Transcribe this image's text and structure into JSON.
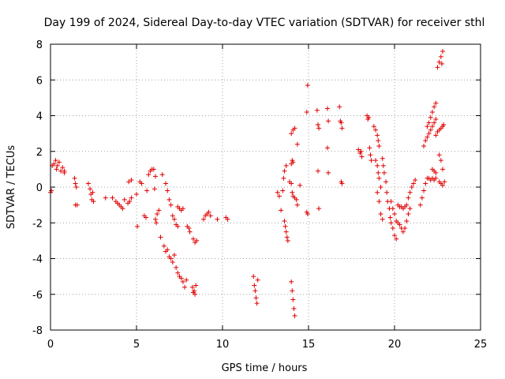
{
  "chart_data": {
    "type": "scatter",
    "title": "Day 199 of 2024, Sidereal Day-to-day VTEC variation (SDTVAR) for receiver sthl",
    "xlabel": "GPS time / hours",
    "ylabel": "SDTVAR / TECUs",
    "xlim": [
      0,
      25
    ],
    "ylim": [
      -8,
      8
    ],
    "xticks": [
      "0",
      "5",
      "10",
      "15",
      "20",
      "25"
    ],
    "yticks": [
      "-8",
      "-6",
      "-4",
      "-2",
      "0",
      "2",
      "4",
      "6",
      "8"
    ],
    "grid": true,
    "marker": "+",
    "color": "#e00000",
    "series": [
      {
        "name": "SDTVAR",
        "points": [
          [
            0.0,
            -0.3
          ],
          [
            0.05,
            -0.2
          ],
          [
            0.1,
            1.2
          ],
          [
            0.2,
            1.3
          ],
          [
            0.3,
            1.5
          ],
          [
            0.35,
            1.0
          ],
          [
            0.4,
            1.2
          ],
          [
            0.5,
            1.4
          ],
          [
            0.6,
            0.9
          ],
          [
            0.7,
            1.1
          ],
          [
            0.8,
            0.9
          ],
          [
            0.8,
            0.8
          ],
          [
            1.4,
            0.5
          ],
          [
            1.45,
            0.2
          ],
          [
            1.5,
            0.0
          ],
          [
            1.45,
            -1.0
          ],
          [
            1.55,
            -1.0
          ],
          [
            2.2,
            0.2
          ],
          [
            2.3,
            -0.1
          ],
          [
            2.35,
            -0.4
          ],
          [
            2.4,
            -0.7
          ],
          [
            2.45,
            -0.3
          ],
          [
            2.5,
            -0.8
          ],
          [
            3.2,
            -0.6
          ],
          [
            3.6,
            -0.6
          ],
          [
            3.8,
            -0.8
          ],
          [
            3.9,
            -0.9
          ],
          [
            4.0,
            -1.0
          ],
          [
            4.1,
            -1.1
          ],
          [
            4.2,
            -1.2
          ],
          [
            4.3,
            -0.7
          ],
          [
            4.5,
            -0.9
          ],
          [
            4.6,
            -0.8
          ],
          [
            4.7,
            -0.6
          ],
          [
            4.55,
            0.3
          ],
          [
            4.7,
            0.4
          ],
          [
            5.0,
            -0.4
          ],
          [
            5.05,
            -2.2
          ],
          [
            5.2,
            0.3
          ],
          [
            5.3,
            0.2
          ],
          [
            5.45,
            -1.6
          ],
          [
            5.55,
            -1.7
          ],
          [
            5.6,
            -0.2
          ],
          [
            5.7,
            0.7
          ],
          [
            5.8,
            0.9
          ],
          [
            5.9,
            1.0
          ],
          [
            6.0,
            1.0
          ],
          [
            6.05,
            -0.1
          ],
          [
            6.1,
            -1.8
          ],
          [
            6.15,
            -2.0
          ],
          [
            6.1,
            0.6
          ],
          [
            6.2,
            -1.5
          ],
          [
            6.3,
            -1.3
          ],
          [
            6.5,
            0.7
          ],
          [
            6.4,
            -2.8
          ],
          [
            6.6,
            -3.3
          ],
          [
            6.7,
            -3.6
          ],
          [
            6.8,
            -3.5
          ],
          [
            6.9,
            -3.9
          ],
          [
            7.0,
            -4.0
          ],
          [
            7.1,
            -4.2
          ],
          [
            7.2,
            -3.8
          ],
          [
            7.3,
            -4.5
          ],
          [
            7.4,
            -4.8
          ],
          [
            7.5,
            -5.0
          ],
          [
            7.6,
            -5.1
          ],
          [
            7.7,
            -5.3
          ],
          [
            7.8,
            -5.6
          ],
          [
            7.9,
            -5.2
          ],
          [
            6.7,
            0.2
          ],
          [
            6.8,
            -0.2
          ],
          [
            6.9,
            -0.7
          ],
          [
            7.0,
            -1.0
          ],
          [
            7.1,
            -1.6
          ],
          [
            7.2,
            -1.8
          ],
          [
            7.3,
            -2.1
          ],
          [
            7.4,
            -2.2
          ],
          [
            7.4,
            -1.1
          ],
          [
            7.5,
            -1.2
          ],
          [
            7.6,
            -1.3
          ],
          [
            7.7,
            -1.2
          ],
          [
            7.95,
            -2.2
          ],
          [
            8.05,
            -2.3
          ],
          [
            8.1,
            -2.5
          ],
          [
            8.25,
            -5.6
          ],
          [
            8.3,
            -5.9
          ],
          [
            8.35,
            -5.8
          ],
          [
            8.4,
            -6.0
          ],
          [
            8.45,
            -5.5
          ],
          [
            8.3,
            -2.9
          ],
          [
            8.4,
            -3.1
          ],
          [
            8.5,
            -3.0
          ],
          [
            8.9,
            -1.8
          ],
          [
            9.0,
            -1.6
          ],
          [
            9.1,
            -1.5
          ],
          [
            9.2,
            -1.4
          ],
          [
            9.3,
            -1.6
          ],
          [
            9.7,
            -1.8
          ],
          [
            10.2,
            -1.7
          ],
          [
            10.3,
            -1.8
          ],
          [
            11.8,
            -5.0
          ],
          [
            11.85,
            -5.5
          ],
          [
            11.9,
            -5.8
          ],
          [
            11.95,
            -6.2
          ],
          [
            12.0,
            -6.5
          ],
          [
            12.05,
            -5.2
          ],
          [
            13.2,
            -0.3
          ],
          [
            13.3,
            -0.5
          ],
          [
            13.4,
            -1.3
          ],
          [
            13.5,
            -0.2
          ],
          [
            13.55,
            0.5
          ],
          [
            13.6,
            -1.9
          ],
          [
            13.65,
            -2.2
          ],
          [
            13.7,
            -2.5
          ],
          [
            13.75,
            -2.8
          ],
          [
            13.8,
            -3.0
          ],
          [
            13.6,
            0.9
          ],
          [
            13.7,
            1.2
          ],
          [
            13.9,
            0.3
          ],
          [
            14.0,
            0.2
          ],
          [
            14.05,
            -0.3
          ],
          [
            14.1,
            -0.5
          ],
          [
            14.2,
            -0.6
          ],
          [
            14.3,
            -0.7
          ],
          [
            14.35,
            -1.0
          ],
          [
            14.0,
            1.3
          ],
          [
            14.05,
            1.5
          ],
          [
            14.1,
            1.4
          ],
          [
            14.0,
            -5.3
          ],
          [
            14.05,
            -5.8
          ],
          [
            14.1,
            -6.3
          ],
          [
            14.15,
            -6.8
          ],
          [
            14.2,
            -7.2
          ],
          [
            14.0,
            3.0
          ],
          [
            14.1,
            3.2
          ],
          [
            14.2,
            3.3
          ],
          [
            14.35,
            2.4
          ],
          [
            14.5,
            0.1
          ],
          [
            14.9,
            4.2
          ],
          [
            14.95,
            5.7
          ],
          [
            14.9,
            -1.4
          ],
          [
            14.95,
            -1.5
          ],
          [
            15.5,
            4.3
          ],
          [
            15.55,
            3.5
          ],
          [
            15.6,
            3.3
          ],
          [
            15.55,
            0.9
          ],
          [
            15.6,
            -1.2
          ],
          [
            16.1,
            4.4
          ],
          [
            16.15,
            3.7
          ],
          [
            16.1,
            2.2
          ],
          [
            16.15,
            0.8
          ],
          [
            16.8,
            4.5
          ],
          [
            16.85,
            3.7
          ],
          [
            16.9,
            3.6
          ],
          [
            16.95,
            3.3
          ],
          [
            16.9,
            0.3
          ],
          [
            16.95,
            0.2
          ],
          [
            17.9,
            2.1
          ],
          [
            18.0,
            1.9
          ],
          [
            18.05,
            2.0
          ],
          [
            18.1,
            1.7
          ],
          [
            18.4,
            4.0
          ],
          [
            18.45,
            3.8
          ],
          [
            18.5,
            3.9
          ],
          [
            18.55,
            2.2
          ],
          [
            18.6,
            1.8
          ],
          [
            18.65,
            1.5
          ],
          [
            18.8,
            3.4
          ],
          [
            18.9,
            3.2
          ],
          [
            19.0,
            2.9
          ],
          [
            19.05,
            2.6
          ],
          [
            19.1,
            2.3
          ],
          [
            18.9,
            1.5
          ],
          [
            19.0,
            1.2
          ],
          [
            19.05,
            0.8
          ],
          [
            19.1,
            0.5
          ],
          [
            19.2,
            0.0
          ],
          [
            19.0,
            -0.3
          ],
          [
            19.1,
            -0.8
          ],
          [
            19.2,
            -1.5
          ],
          [
            19.3,
            -1.8
          ],
          [
            19.3,
            1.6
          ],
          [
            19.35,
            1.2
          ],
          [
            19.4,
            0.8
          ],
          [
            19.5,
            0.3
          ],
          [
            19.55,
            -0.3
          ],
          [
            19.6,
            -0.8
          ],
          [
            19.7,
            -1.2
          ],
          [
            19.75,
            -1.7
          ],
          [
            19.8,
            -2.0
          ],
          [
            19.9,
            -2.3
          ],
          [
            20.0,
            -2.7
          ],
          [
            20.1,
            -2.9
          ],
          [
            19.8,
            -0.8
          ],
          [
            19.9,
            -1.2
          ],
          [
            20.0,
            -1.5
          ],
          [
            20.1,
            -1.9
          ],
          [
            20.2,
            -2.0
          ],
          [
            20.3,
            -2.1
          ],
          [
            20.4,
            -2.3
          ],
          [
            20.5,
            -2.5
          ],
          [
            20.6,
            -2.3
          ],
          [
            20.7,
            -1.9
          ],
          [
            20.8,
            -1.5
          ],
          [
            20.9,
            -1.2
          ],
          [
            20.2,
            -1.0
          ],
          [
            20.3,
            -1.1
          ],
          [
            20.4,
            -1.1
          ],
          [
            20.5,
            -1.2
          ],
          [
            20.6,
            -1.1
          ],
          [
            20.7,
            -1.0
          ],
          [
            20.8,
            -0.6
          ],
          [
            20.9,
            -0.3
          ],
          [
            21.0,
            0.0
          ],
          [
            21.1,
            0.2
          ],
          [
            21.2,
            0.4
          ],
          [
            21.5,
            -1.0
          ],
          [
            21.6,
            -0.6
          ],
          [
            21.7,
            -0.2
          ],
          [
            21.8,
            0.2
          ],
          [
            21.9,
            0.5
          ],
          [
            21.7,
            2.3
          ],
          [
            21.8,
            2.6
          ],
          [
            21.9,
            2.8
          ],
          [
            22.0,
            3.0
          ],
          [
            22.1,
            3.2
          ],
          [
            22.2,
            3.4
          ],
          [
            22.3,
            3.6
          ],
          [
            22.4,
            3.8
          ],
          [
            21.9,
            3.4
          ],
          [
            22.0,
            3.6
          ],
          [
            22.1,
            3.9
          ],
          [
            22.2,
            4.2
          ],
          [
            22.3,
            4.5
          ],
          [
            22.4,
            4.7
          ],
          [
            22.0,
            0.5
          ],
          [
            22.1,
            0.4
          ],
          [
            22.2,
            0.5
          ],
          [
            22.3,
            0.4
          ],
          [
            22.4,
            0.5
          ],
          [
            22.2,
            1.0
          ],
          [
            22.3,
            0.9
          ],
          [
            22.4,
            0.8
          ],
          [
            22.4,
            2.9
          ],
          [
            22.5,
            3.1
          ],
          [
            22.6,
            3.2
          ],
          [
            22.7,
            3.3
          ],
          [
            22.8,
            3.4
          ],
          [
            22.85,
            3.5
          ],
          [
            22.5,
            6.7
          ],
          [
            22.6,
            7.0
          ],
          [
            22.7,
            7.3
          ],
          [
            22.8,
            7.6
          ],
          [
            22.75,
            6.9
          ],
          [
            22.6,
            1.8
          ],
          [
            22.7,
            1.5
          ],
          [
            22.8,
            1.0
          ],
          [
            22.6,
            0.3
          ],
          [
            22.7,
            0.2
          ],
          [
            22.8,
            0.1
          ],
          [
            22.9,
            0.3
          ]
        ]
      }
    ]
  }
}
